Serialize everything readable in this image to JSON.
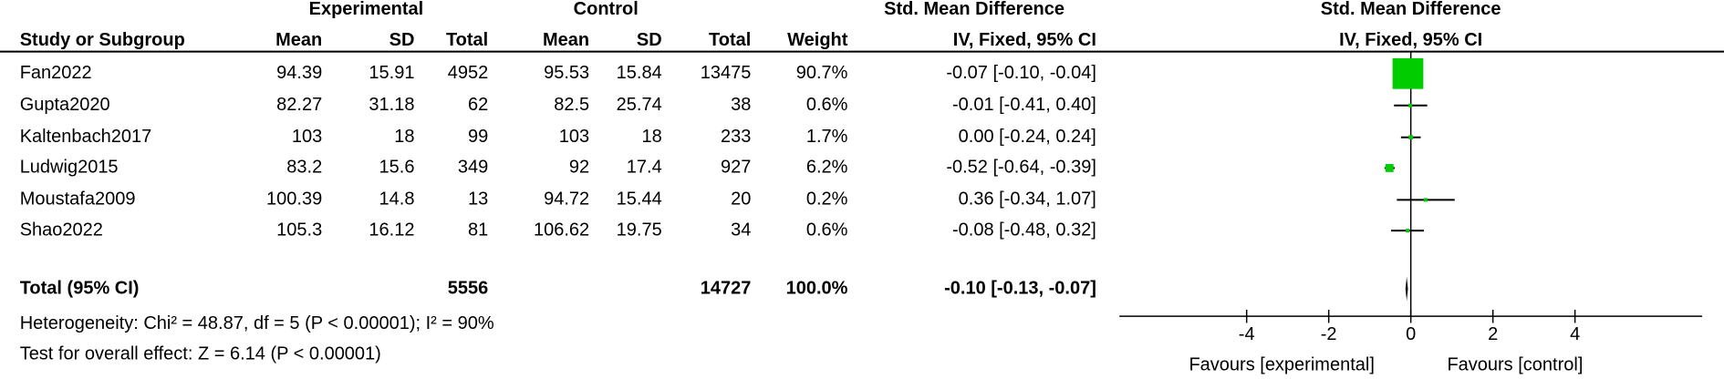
{
  "chart_data": {
    "type": "forest",
    "group_headers": {
      "experimental": "Experimental",
      "control": "Control",
      "effect": "Std. Mean Difference",
      "plot": "Std. Mean Difference"
    },
    "columns": {
      "study": "Study or Subgroup",
      "exp_mean": "Mean",
      "exp_sd": "SD",
      "exp_total": "Total",
      "ctl_mean": "Mean",
      "ctl_sd": "SD",
      "ctl_total": "Total",
      "weight": "Weight",
      "effect": "IV, Fixed, 95% CI",
      "plot": "IV, Fixed, 95% CI"
    },
    "studies": [
      {
        "name": "Fan2022",
        "exp_mean": 94.39,
        "exp_sd": 15.91,
        "exp_total": 4952,
        "ctl_mean": 95.53,
        "ctl_sd": 15.84,
        "ctl_total": 13475,
        "weight": 90.7,
        "weight_label": "90.7%",
        "smd": -0.07,
        "ci_low": -0.1,
        "ci_high": -0.04,
        "ci_label": "-0.07 [-0.10, -0.04]"
      },
      {
        "name": "Gupta2020",
        "exp_mean": 82.27,
        "exp_sd": 31.18,
        "exp_total": 62,
        "ctl_mean": 82.5,
        "ctl_sd": 25.74,
        "ctl_total": 38,
        "weight": 0.6,
        "weight_label": "0.6%",
        "smd": -0.01,
        "ci_low": -0.41,
        "ci_high": 0.4,
        "ci_label": "-0.01 [-0.41, 0.40]"
      },
      {
        "name": "Kaltenbach2017",
        "exp_mean": 103,
        "exp_sd": 18,
        "exp_total": 99,
        "ctl_mean": 103,
        "ctl_sd": 18,
        "ctl_total": 233,
        "weight": 1.7,
        "weight_label": "1.7%",
        "smd": 0.0,
        "ci_low": -0.24,
        "ci_high": 0.24,
        "ci_label": "0.00 [-0.24, 0.24]"
      },
      {
        "name": "Ludwig2015",
        "exp_mean": 83.2,
        "exp_sd": 15.6,
        "exp_total": 349,
        "ctl_mean": 92,
        "ctl_sd": 17.4,
        "ctl_total": 927,
        "weight": 6.2,
        "weight_label": "6.2%",
        "smd": -0.52,
        "ci_low": -0.64,
        "ci_high": -0.39,
        "ci_label": "-0.52 [-0.64, -0.39]"
      },
      {
        "name": "Moustafa2009",
        "exp_mean": 100.39,
        "exp_sd": 14.8,
        "exp_total": 13,
        "ctl_mean": 94.72,
        "ctl_sd": 15.44,
        "ctl_total": 20,
        "weight": 0.2,
        "weight_label": "0.2%",
        "smd": 0.36,
        "ci_low": -0.34,
        "ci_high": 1.07,
        "ci_label": "0.36 [-0.34, 1.07]"
      },
      {
        "name": "Shao2022",
        "exp_mean": 105.3,
        "exp_sd": 16.12,
        "exp_total": 81,
        "ctl_mean": 106.62,
        "ctl_sd": 19.75,
        "ctl_total": 34,
        "weight": 0.6,
        "weight_label": "0.6%",
        "smd": -0.08,
        "ci_low": -0.48,
        "ci_high": 0.32,
        "ci_label": "-0.08 [-0.48, 0.32]"
      }
    ],
    "total": {
      "name": "Total (95% CI)",
      "exp_total": 5556,
      "ctl_total": 14727,
      "weight": 100,
      "weight_label": "100.0%",
      "smd": -0.1,
      "ci_low": -0.13,
      "ci_high": -0.07,
      "ci_label": "-0.10 [-0.13, -0.07]"
    },
    "heterogeneity": "Heterogeneity: Chi² = 48.87, df = 5 (P < 0.00001); I² = 90%",
    "overall_effect": "Test for overall effect: Z = 6.14 (P < 0.00001)",
    "xlim": [
      -7.1,
      7.1
    ],
    "xticks": [
      -4,
      -2,
      0,
      2,
      4
    ],
    "favours": {
      "left": "Favours [experimental]",
      "right": "Favours [control]"
    },
    "square_color": "#00cc00",
    "diamond_color": "#000000"
  }
}
